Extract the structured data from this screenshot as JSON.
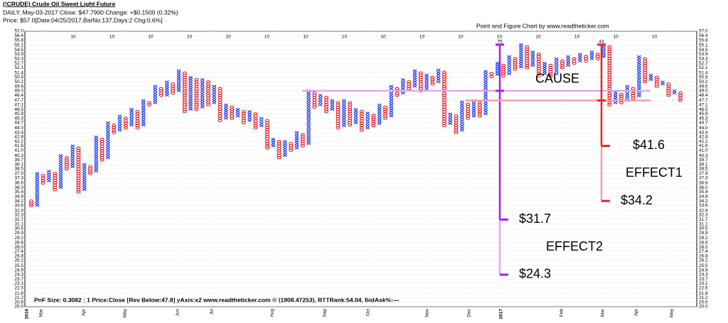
{
  "chart_data": {
    "type": "point-and-figure",
    "title": "(!CRUDE) Crude Oil Sweet Light Future",
    "subtitle": "DAILY, May-03-2017 Close: $47.7900 Change: +$0.1500 (0.32%)",
    "info": "Price: $57.0[Date:04/25/2017,BarNo:137,Days:2 Chg:0.6%]",
    "chart_credit": "Point and Figure Chart by www.readtheticker.com",
    "footer": "PnF Size: 0.3082 ; 1   Price:Close [Rev Below:47.8] yAxis:x2   www.readtheticker.com © (1908.47253), RTTRank:54.04, BidAsk%:---",
    "column_marker": "10",
    "months": [
      "2016",
      "Mar",
      "Apr",
      "May",
      "Jun",
      "Jul",
      "Aug",
      "Sep",
      "Oct",
      "Nov",
      "Dec",
      "2017",
      "Feb",
      "Mar",
      "Apr",
      "May"
    ],
    "box_size": 0.3082,
    "x_color": "#1f3cf0",
    "o_color": "#e8141c",
    "grid": true,
    "ylim": [
      20,
      57
    ],
    "yticks": [
      {
        "value": 57,
        "label": "57.0"
      },
      56.4,
      55.8,
      55.1,
      54.5,
      53.9,
      53.3,
      52.7,
      52.1,
      51.4,
      50.8,
      50.2,
      49.6,
      {
        "value": 49,
        "label": "49.0"
      },
      48.4,
      47.7,
      47.1,
      46.5,
      45.9,
      45.3,
      44.7,
      {
        "value": 44,
        "label": "44.0"
      },
      43.4,
      42.8,
      42.2,
      41.6,
      {
        "value": 41,
        "label": "41.0"
      },
      40.3,
      39.7,
      39.1,
      38.5,
      37.9,
      37.3,
      36.6,
      {
        "value": 36,
        "label": "36.0"
      },
      35.4,
      34.8,
      34.2,
      33.6,
      32.9,
      32.3,
      31.7,
      31.1,
      30.5,
      29.9,
      29.2,
      28.6,
      {
        "value": 28,
        "label": "28.0"
      },
      27.4,
      26.8,
      26.2,
      25.5,
      24.9,
      24.3,
      23.7,
      23.1,
      22.5,
      21.8,
      21.2,
      20.6,
      {
        "value": 20,
        "label": "20.0"
      }
    ],
    "columns": [
      {
        "kind": "O",
        "low": 33.6,
        "high": 34.2
      },
      {
        "kind": "X",
        "low": 33.6,
        "high": 37.9
      },
      {
        "kind": "O",
        "low": 36.6,
        "high": 37.6
      },
      {
        "kind": "X",
        "low": 36.9,
        "high": 38.2
      },
      {
        "kind": "O",
        "low": 35.7,
        "high": 37.9
      },
      {
        "kind": "X",
        "low": 36.0,
        "high": 40.3
      },
      {
        "kind": "O",
        "low": 38.5,
        "high": 40.0
      },
      {
        "kind": "X",
        "low": 38.8,
        "high": 41.6
      },
      {
        "kind": "O",
        "low": 35.4,
        "high": 41.3
      },
      {
        "kind": "X",
        "low": 35.7,
        "high": 39.1
      },
      {
        "kind": "O",
        "low": 37.9,
        "high": 38.8
      },
      {
        "kind": "X",
        "low": 38.2,
        "high": 42.8
      },
      {
        "kind": "O",
        "low": 39.7,
        "high": 42.5
      },
      {
        "kind": "X",
        "low": 40.0,
        "high": 44.7
      },
      {
        "kind": "O",
        "low": 43.4,
        "high": 44.4
      },
      {
        "kind": "X",
        "low": 43.7,
        "high": 45.6
      },
      {
        "kind": "O",
        "low": 44.0,
        "high": 45.3
      },
      {
        "kind": "X",
        "low": 44.4,
        "high": 46.5
      },
      {
        "kind": "O",
        "low": 44.0,
        "high": 46.2
      },
      {
        "kind": "X",
        "low": 44.4,
        "high": 47.7
      },
      {
        "kind": "O",
        "low": 47.1,
        "high": 47.4
      },
      {
        "kind": "X",
        "low": 47.4,
        "high": 49.6
      },
      {
        "kind": "O",
        "low": 48.4,
        "high": 49.3
      },
      {
        "kind": "X",
        "low": 48.4,
        "high": 50.2
      },
      {
        "kind": "O",
        "low": 48.7,
        "high": 49.9
      },
      {
        "kind": "X",
        "low": 49.0,
        "high": 51.7
      },
      {
        "kind": "O",
        "low": 46.2,
        "high": 51.4
      },
      {
        "kind": "X",
        "low": 46.5,
        "high": 50.8
      },
      {
        "kind": "O",
        "low": 46.5,
        "high": 50.5
      },
      {
        "kind": "X",
        "low": 46.8,
        "high": 50.5
      },
      {
        "kind": "O",
        "low": 47.1,
        "high": 50.2
      },
      {
        "kind": "X",
        "low": 47.4,
        "high": 49.6
      },
      {
        "kind": "O",
        "low": 45.0,
        "high": 49.3
      },
      {
        "kind": "X",
        "low": 45.3,
        "high": 47.1
      },
      {
        "kind": "O",
        "low": 45.3,
        "high": 46.8
      },
      {
        "kind": "X",
        "low": 45.6,
        "high": 46.5
      },
      {
        "kind": "O",
        "low": 44.7,
        "high": 46.2
      },
      {
        "kind": "X",
        "low": 45.0,
        "high": 46.2
      },
      {
        "kind": "O",
        "low": 44.0,
        "high": 45.9
      },
      {
        "kind": "X",
        "low": 44.3,
        "high": 45.3
      },
      {
        "kind": "O",
        "low": 41.3,
        "high": 45.0
      },
      {
        "kind": "X",
        "low": 41.6,
        "high": 42.5
      },
      {
        "kind": "O",
        "low": 40.0,
        "high": 42.2
      },
      {
        "kind": "X",
        "low": 40.3,
        "high": 42.2
      },
      {
        "kind": "O",
        "low": 41.0,
        "high": 41.9
      },
      {
        "kind": "X",
        "low": 41.3,
        "high": 43.4
      },
      {
        "kind": "O",
        "low": 41.6,
        "high": 43.1
      },
      {
        "kind": "X",
        "low": 41.9,
        "high": 49.0
      },
      {
        "kind": "O",
        "low": 46.8,
        "high": 48.7
      },
      {
        "kind": "X",
        "low": 47.1,
        "high": 48.4
      },
      {
        "kind": "O",
        "low": 46.2,
        "high": 48.1
      },
      {
        "kind": "X",
        "low": 46.5,
        "high": 47.7
      },
      {
        "kind": "O",
        "low": 44.0,
        "high": 47.4
      },
      {
        "kind": "X",
        "low": 44.3,
        "high": 47.7
      },
      {
        "kind": "O",
        "low": 44.4,
        "high": 47.4
      },
      {
        "kind": "X",
        "low": 44.7,
        "high": 46.5
      },
      {
        "kind": "O",
        "low": 43.7,
        "high": 46.2
      },
      {
        "kind": "X",
        "low": 44.0,
        "high": 46.0
      },
      {
        "kind": "O",
        "low": 44.3,
        "high": 45.7
      },
      {
        "kind": "X",
        "low": 44.6,
        "high": 47.1
      },
      {
        "kind": "O",
        "low": 45.3,
        "high": 46.8
      },
      {
        "kind": "X",
        "low": 45.6,
        "high": 49.6
      },
      {
        "kind": "O",
        "low": 48.4,
        "high": 49.3
      },
      {
        "kind": "X",
        "low": 48.7,
        "high": 50.5
      },
      {
        "kind": "O",
        "low": 49.3,
        "high": 50.2
      },
      {
        "kind": "X",
        "low": 49.6,
        "high": 51.7
      },
      {
        "kind": "O",
        "low": 49.0,
        "high": 51.4
      },
      {
        "kind": "X",
        "low": 49.3,
        "high": 51.1
      },
      {
        "kind": "O",
        "low": 49.9,
        "high": 50.8
      },
      {
        "kind": "X",
        "low": 50.2,
        "high": 51.8
      },
      {
        "kind": "O",
        "low": 44.3,
        "high": 51.5
      },
      {
        "kind": "X",
        "low": 44.6,
        "high": 45.9
      },
      {
        "kind": "O",
        "low": 43.4,
        "high": 45.6
      },
      {
        "kind": "X",
        "low": 43.7,
        "high": 47.5
      },
      {
        "kind": "O",
        "low": 45.3,
        "high": 47.2
      },
      {
        "kind": "X",
        "low": 45.6,
        "high": 47.7
      },
      {
        "kind": "O",
        "low": 45.6,
        "high": 47.4
      },
      {
        "kind": "X",
        "low": 45.9,
        "high": 51.6
      },
      {
        "kind": "O",
        "low": 50.9,
        "high": 51.3
      },
      {
        "kind": "X",
        "low": 51.2,
        "high": 52.7
      },
      {
        "kind": "O",
        "low": 51.0,
        "high": 52.4
      },
      {
        "kind": "X",
        "low": 51.3,
        "high": 53.6
      },
      {
        "kind": "O",
        "low": 51.9,
        "high": 53.3
      },
      {
        "kind": "X",
        "low": 52.2,
        "high": 55.2
      },
      {
        "kind": "O",
        "low": 52.1,
        "high": 54.9
      },
      {
        "kind": "X",
        "low": 52.4,
        "high": 54.2
      },
      {
        "kind": "O",
        "low": 51.0,
        "high": 53.9
      },
      {
        "kind": "X",
        "low": 51.3,
        "high": 52.7
      },
      {
        "kind": "O",
        "low": 51.0,
        "high": 52.4
      },
      {
        "kind": "X",
        "low": 51.3,
        "high": 53.3
      },
      {
        "kind": "O",
        "low": 52.1,
        "high": 53.0
      },
      {
        "kind": "X",
        "low": 52.4,
        "high": 53.6
      },
      {
        "kind": "O",
        "low": 52.7,
        "high": 53.3
      },
      {
        "kind": "X",
        "low": 53.0,
        "high": 53.9
      },
      {
        "kind": "O",
        "low": 53.0,
        "high": 53.6
      },
      {
        "kind": "X",
        "low": 53.3,
        "high": 54.2
      },
      {
        "kind": "O",
        "low": 53.3,
        "high": 53.9
      },
      {
        "kind": "X",
        "low": 53.6,
        "high": 55.2
      },
      {
        "kind": "O",
        "low": 47.1,
        "high": 54.9
      },
      {
        "kind": "X",
        "low": 47.4,
        "high": 48.8
      },
      {
        "kind": "O",
        "low": 47.4,
        "high": 48.5
      },
      {
        "kind": "X",
        "low": 47.7,
        "high": 49.6
      },
      {
        "kind": "O",
        "low": 48.0,
        "high": 49.3
      },
      {
        "kind": "X",
        "low": 48.3,
        "high": 53.6
      },
      {
        "kind": "O",
        "low": 50.2,
        "high": 53.3
      },
      {
        "kind": "X",
        "low": 50.5,
        "high": 51.1
      },
      {
        "kind": "O",
        "low": 49.6,
        "high": 50.8
      },
      {
        "kind": "X",
        "low": 49.9,
        "high": 50.2
      },
      {
        "kind": "O",
        "low": 48.4,
        "high": 49.9
      },
      {
        "kind": "X",
        "low": 48.7,
        "high": 49.0
      },
      {
        "kind": "O",
        "low": 47.7,
        "high": 48.7
      }
    ],
    "cause_label": "CAUSE",
    "projections": [
      {
        "name": "EFFECT2",
        "peak_label": "75",
        "color": "#a020f0",
        "light": "#e2a6f2",
        "top": 55.2,
        "base": 49.0,
        "targets": [
          {
            "value": 31.7,
            "label": "$31.7"
          },
          {
            "value": 24.3,
            "label": "$24.3"
          }
        ]
      },
      {
        "name": "EFFECT1",
        "peak_label": "43",
        "color": "#e8242a",
        "light": "#f4a4a4",
        "top": 55.2,
        "base": 47.7,
        "targets": [
          {
            "value": 41.6,
            "label": "$41.6"
          },
          {
            "value": 34.2,
            "label": "$34.2"
          }
        ]
      }
    ]
  }
}
